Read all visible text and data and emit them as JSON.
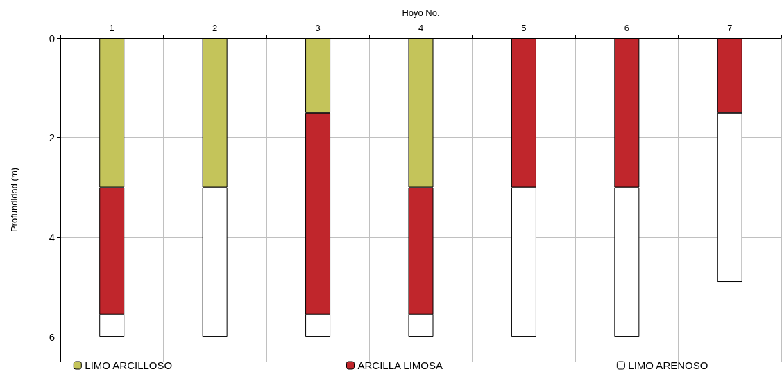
{
  "chart_data": {
    "type": "bar",
    "stacked": true,
    "xlabel": "Hoyo No.",
    "ylabel": "Profundidad (m)",
    "categories": [
      "1",
      "2",
      "3",
      "4",
      "5",
      "6",
      "7"
    ],
    "series": [
      {
        "name": "LIMO ARCILLOSO",
        "color": "#c4c45a",
        "values": [
          3,
          3,
          1.5,
          3,
          null,
          null,
          null
        ]
      },
      {
        "name": "ARCILLA LIMOSA",
        "color": "#c0262c",
        "values": [
          2.55,
          null,
          4.05,
          2.55,
          3,
          3,
          1.5
        ]
      },
      {
        "name": "LIMO ARENOSO",
        "color": "#ffffff",
        "values": [
          0.45,
          3,
          0.45,
          0.45,
          3,
          3,
          3.4
        ]
      }
    ],
    "ylim": [
      6.5,
      0
    ],
    "yticks": [
      0,
      2,
      4,
      6
    ],
    "grid": true,
    "legend": "bottom"
  }
}
